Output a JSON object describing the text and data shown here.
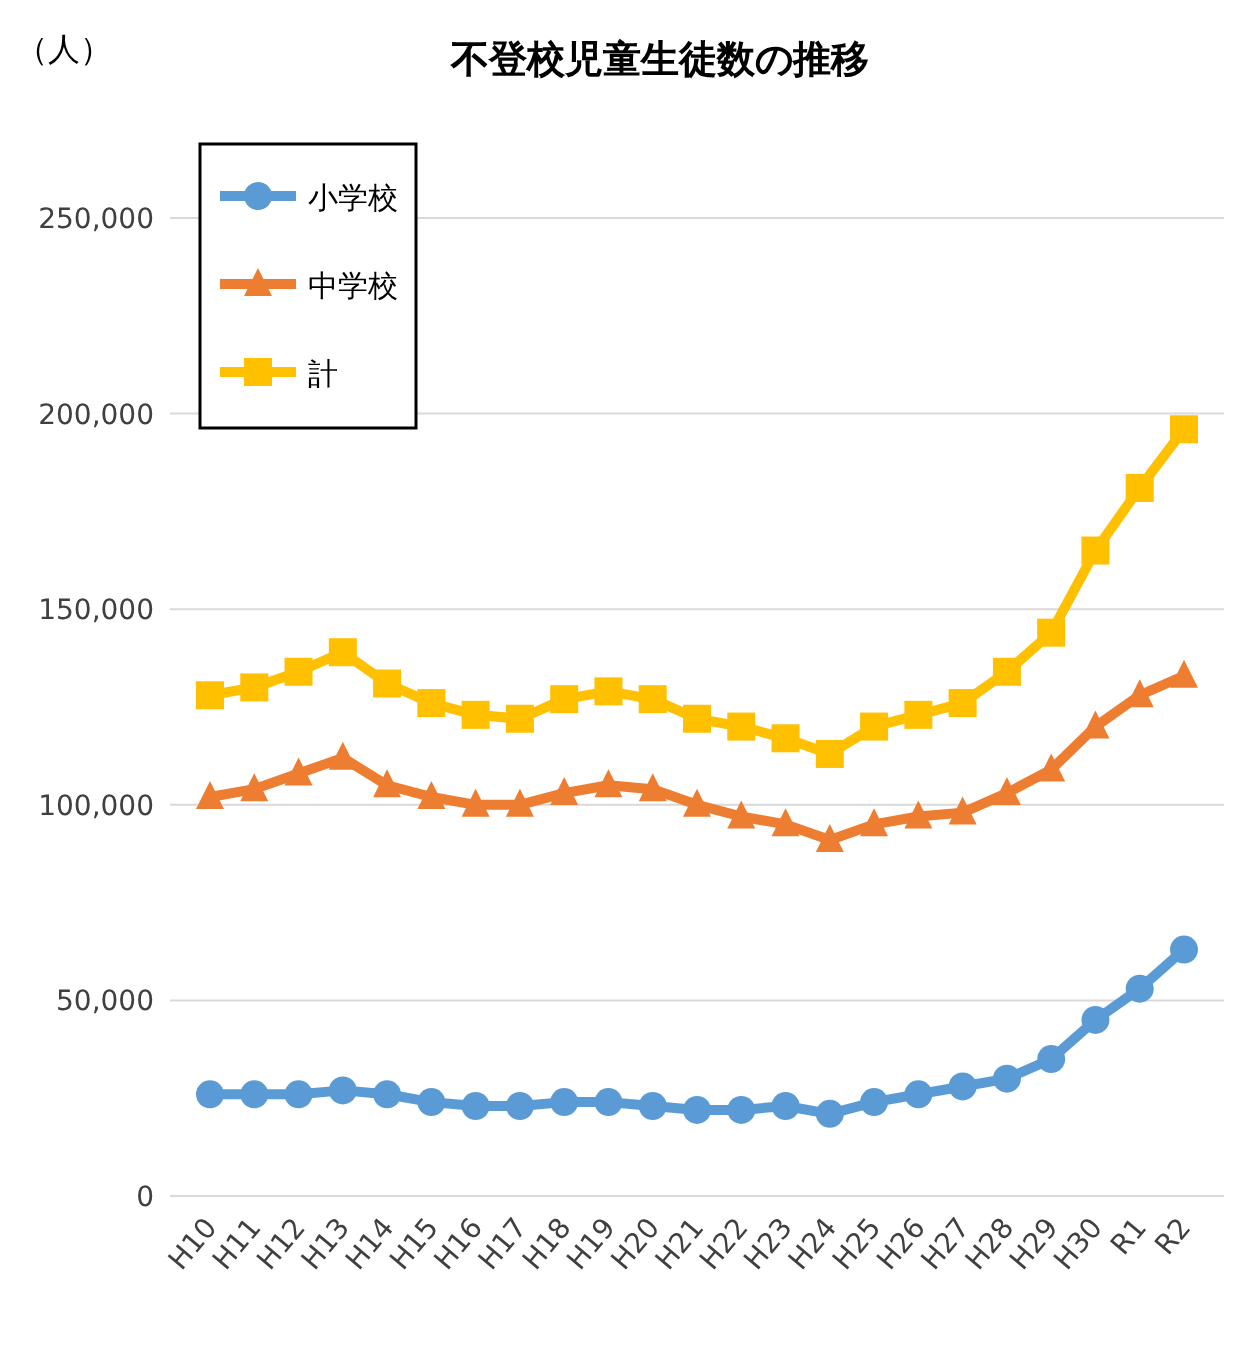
{
  "chart_data": {
    "type": "line",
    "title": "不登校児童生徒数の推移",
    "ylabel": "（人）",
    "categories": [
      "H10",
      "H11",
      "H12",
      "H13",
      "H14",
      "H15",
      "H16",
      "H17",
      "H18",
      "H19",
      "H20",
      "H21",
      "H22",
      "H23",
      "H24",
      "H25",
      "H26",
      "H27",
      "H28",
      "H29",
      "H30",
      "R1",
      "R2"
    ],
    "series": [
      {
        "name": "小学校",
        "color": "#5b9bd5",
        "marker": "circle",
        "values": [
          26000,
          26000,
          26000,
          27000,
          26000,
          24000,
          23000,
          23000,
          24000,
          24000,
          23000,
          22000,
          22000,
          23000,
          21000,
          24000,
          26000,
          28000,
          30000,
          35000,
          45000,
          53000,
          63000
        ]
      },
      {
        "name": "中学校",
        "color": "#ed7d31",
        "marker": "triangle",
        "values": [
          102000,
          104000,
          108000,
          112000,
          105000,
          102000,
          100000,
          100000,
          103000,
          105000,
          104000,
          100000,
          97000,
          95000,
          91000,
          95000,
          97000,
          98000,
          103000,
          109000,
          120000,
          128000,
          133000
        ]
      },
      {
        "name": "計",
        "color": "#ffc000",
        "marker": "square",
        "values": [
          128000,
          130000,
          134000,
          139000,
          131000,
          126000,
          123000,
          122000,
          127000,
          129000,
          127000,
          122000,
          120000,
          117000,
          113000,
          120000,
          123000,
          126000,
          134000,
          144000,
          165000,
          181000,
          196000
        ]
      }
    ],
    "ylim": [
      0,
      250000
    ],
    "yticks": [
      {
        "value": 0,
        "label": "0"
      },
      {
        "value": 50000,
        "label": "50,000"
      },
      {
        "value": 100000,
        "label": "100,000"
      },
      {
        "value": 150000,
        "label": "150,000"
      },
      {
        "value": 200000,
        "label": "200,000"
      },
      {
        "value": 250000,
        "label": "250,000"
      }
    ],
    "grid": "y",
    "legend": "top left",
    "line_style": "solid"
  }
}
